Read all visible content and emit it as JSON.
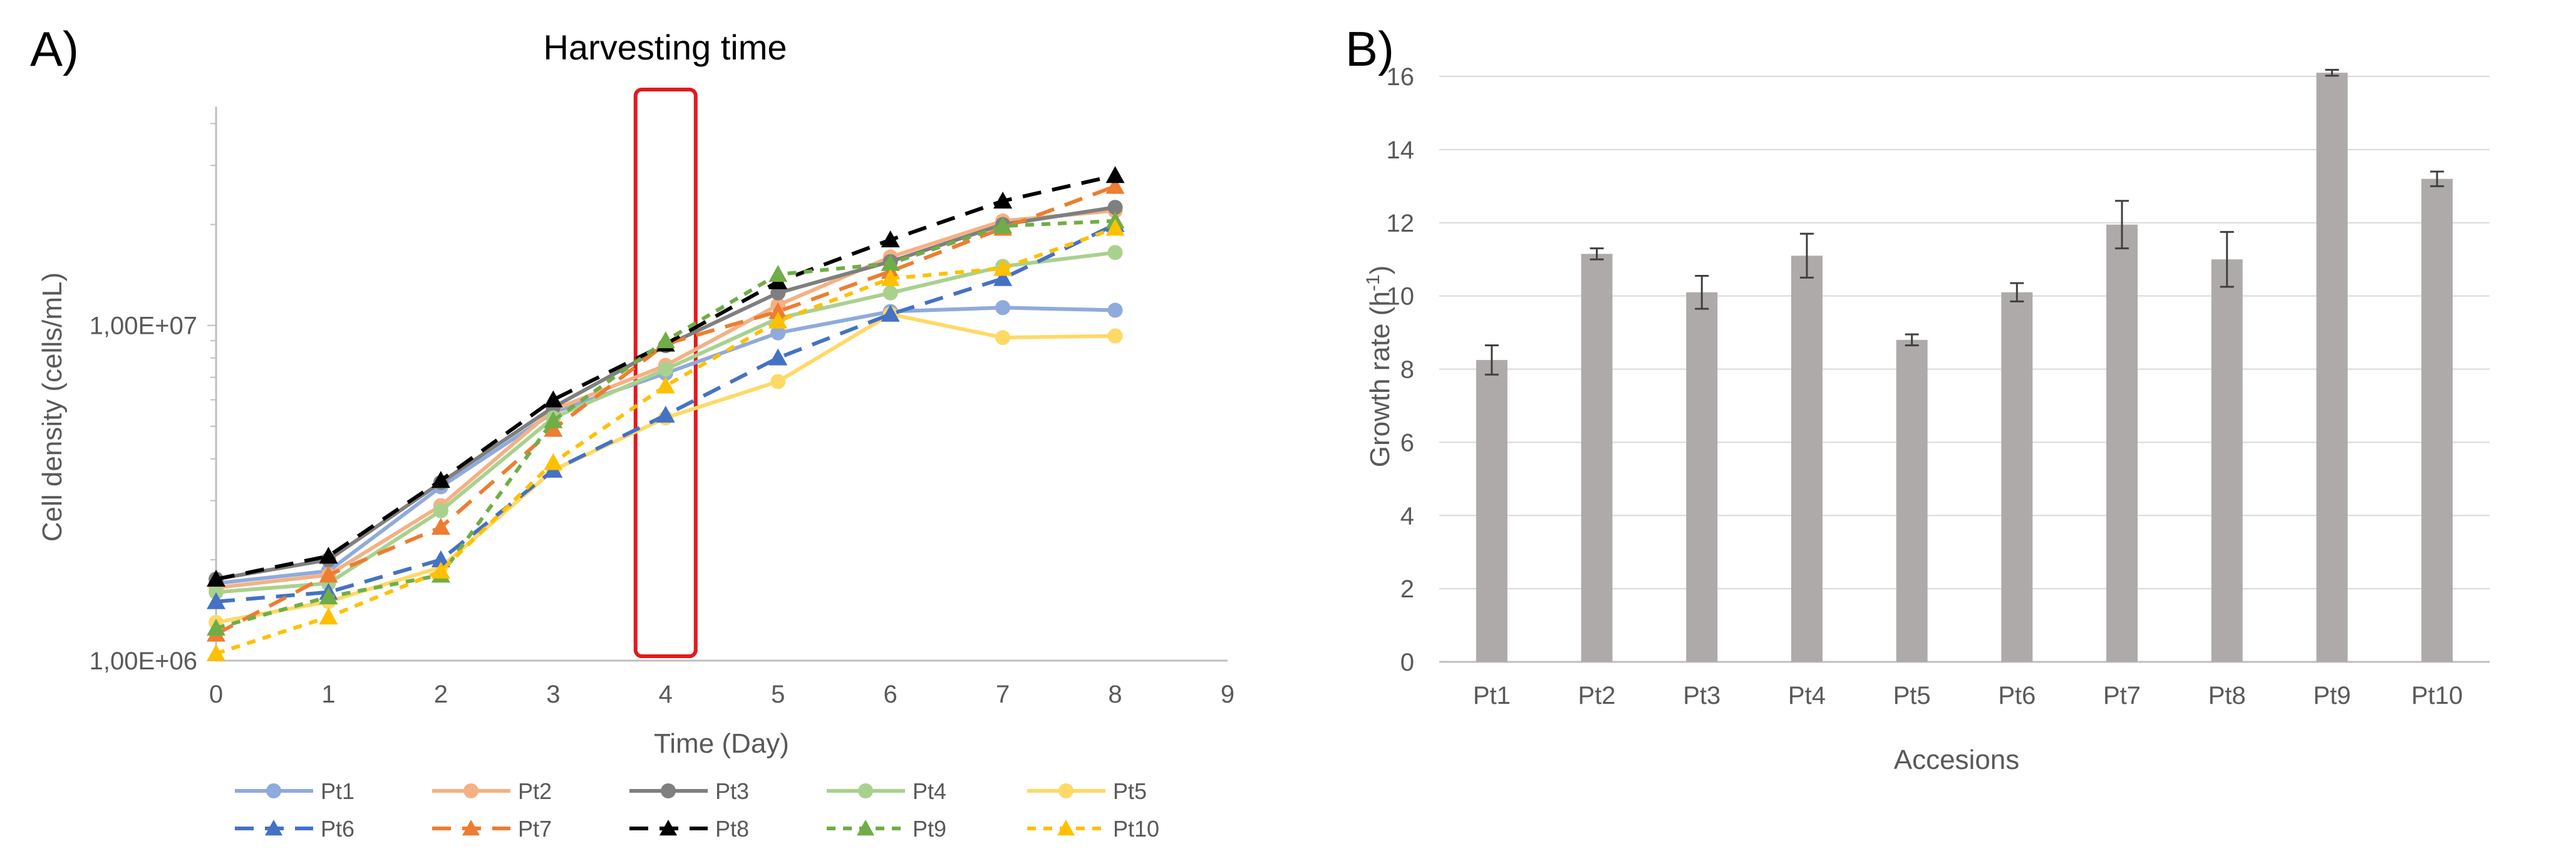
{
  "panels": {
    "a_label": "A)",
    "b_label": "B)"
  },
  "chart_data": [
    {
      "type": "line",
      "title": "Harvesting time",
      "xlabel": "Time (Day)",
      "ylabel": "Cell density (cells/mL)",
      "yscale": "log",
      "ylim": [
        1000000,
        45000000
      ],
      "xlim": [
        0,
        9
      ],
      "x_ticks": [
        "0",
        "1",
        "2",
        "3",
        "4",
        "5",
        "6",
        "7",
        "8",
        "9"
      ],
      "y_ticks": [
        {
          "value": 1000000,
          "label": "1,00E+06"
        },
        {
          "value": 10000000,
          "label": "1,00E+07"
        }
      ],
      "highlight": {
        "x": 4,
        "color": "#e31a1c",
        "meaning": "Harvesting time"
      },
      "legend_position": "bottom",
      "x": [
        0,
        1,
        2,
        3,
        4,
        5,
        6,
        7,
        8
      ],
      "series": [
        {
          "name": "Pt1",
          "color": "#8faadc",
          "dash": "solid",
          "marker": "circle",
          "values": [
            1700000,
            1850000,
            3300000,
            5500000,
            7200000,
            9500000,
            11000000,
            11300000,
            11100000
          ]
        },
        {
          "name": "Pt2",
          "color": "#f4b183",
          "dash": "solid",
          "marker": "circle",
          "values": [
            1650000,
            1800000,
            2900000,
            5600000,
            7600000,
            11500000,
            16000000,
            20500000,
            22000000
          ]
        },
        {
          "name": "Pt3",
          "color": "#7f7f7f",
          "dash": "solid",
          "marker": "circle",
          "values": [
            1750000,
            2000000,
            3400000,
            5700000,
            8700000,
            12500000,
            15500000,
            20000000,
            22500000
          ]
        },
        {
          "name": "Pt4",
          "color": "#a9d18e",
          "dash": "solid",
          "marker": "circle",
          "values": [
            1600000,
            1700000,
            2800000,
            5300000,
            7400000,
            10500000,
            12500000,
            15000000,
            16500000
          ]
        },
        {
          "name": "Pt5",
          "color": "#ffd966",
          "dash": "solid",
          "marker": "circle",
          "values": [
            1300000,
            1500000,
            1900000,
            3700000,
            5300000,
            6800000,
            10800000,
            9200000,
            9300000
          ]
        },
        {
          "name": "Pt6",
          "color": "#4472c4",
          "dash": "dash",
          "marker": "triangle",
          "values": [
            1500000,
            1600000,
            2000000,
            3700000,
            5400000,
            8000000,
            10800000,
            13800000,
            20000000
          ]
        },
        {
          "name": "Pt7",
          "color": "#ed7d31",
          "dash": "dash",
          "marker": "triangle",
          "values": [
            1200000,
            1800000,
            2500000,
            4900000,
            8800000,
            11000000,
            14500000,
            19500000,
            26000000
          ]
        },
        {
          "name": "Pt8",
          "color": "#000000",
          "dash": "dash",
          "marker": "triangle",
          "values": [
            1750000,
            2050000,
            3450000,
            6000000,
            8800000,
            13500000,
            18000000,
            23500000,
            28000000
          ]
        },
        {
          "name": "Pt9",
          "color": "#70ad47",
          "dash": "dot",
          "marker": "triangle",
          "values": [
            1250000,
            1550000,
            1800000,
            5200000,
            9000000,
            14200000,
            15300000,
            19800000,
            20500000
          ]
        },
        {
          "name": "Pt10",
          "color": "#ffc000",
          "dash": "dot",
          "marker": "triangle",
          "values": [
            1050000,
            1350000,
            1850000,
            3900000,
            6600000,
            10300000,
            13800000,
            14800000,
            19500000
          ]
        }
      ]
    },
    {
      "type": "bar",
      "title": "",
      "xlabel": "Accesions",
      "ylabel_main": "Growth rate (h",
      "ylabel_sup": "-1",
      "ylabel_end": ")",
      "ylim": [
        0,
        16
      ],
      "y_ticks": [
        "0",
        "2",
        "4",
        "6",
        "8",
        "10",
        "12",
        "14",
        "16"
      ],
      "grid": true,
      "bar_color": "#aeaaaa",
      "error_color": "#404040",
      "categories": [
        "Pt1",
        "Pt2",
        "Pt3",
        "Pt4",
        "Pt5",
        "Pt6",
        "Pt7",
        "Pt8",
        "Pt9",
        "Pt10"
      ],
      "values": [
        8.25,
        11.15,
        10.1,
        11.1,
        8.8,
        10.1,
        11.95,
        11.0,
        16.1,
        13.2
      ],
      "errors": [
        0.4,
        0.15,
        0.45,
        0.6,
        0.15,
        0.25,
        0.65,
        0.75,
        0.08,
        0.2
      ]
    }
  ]
}
